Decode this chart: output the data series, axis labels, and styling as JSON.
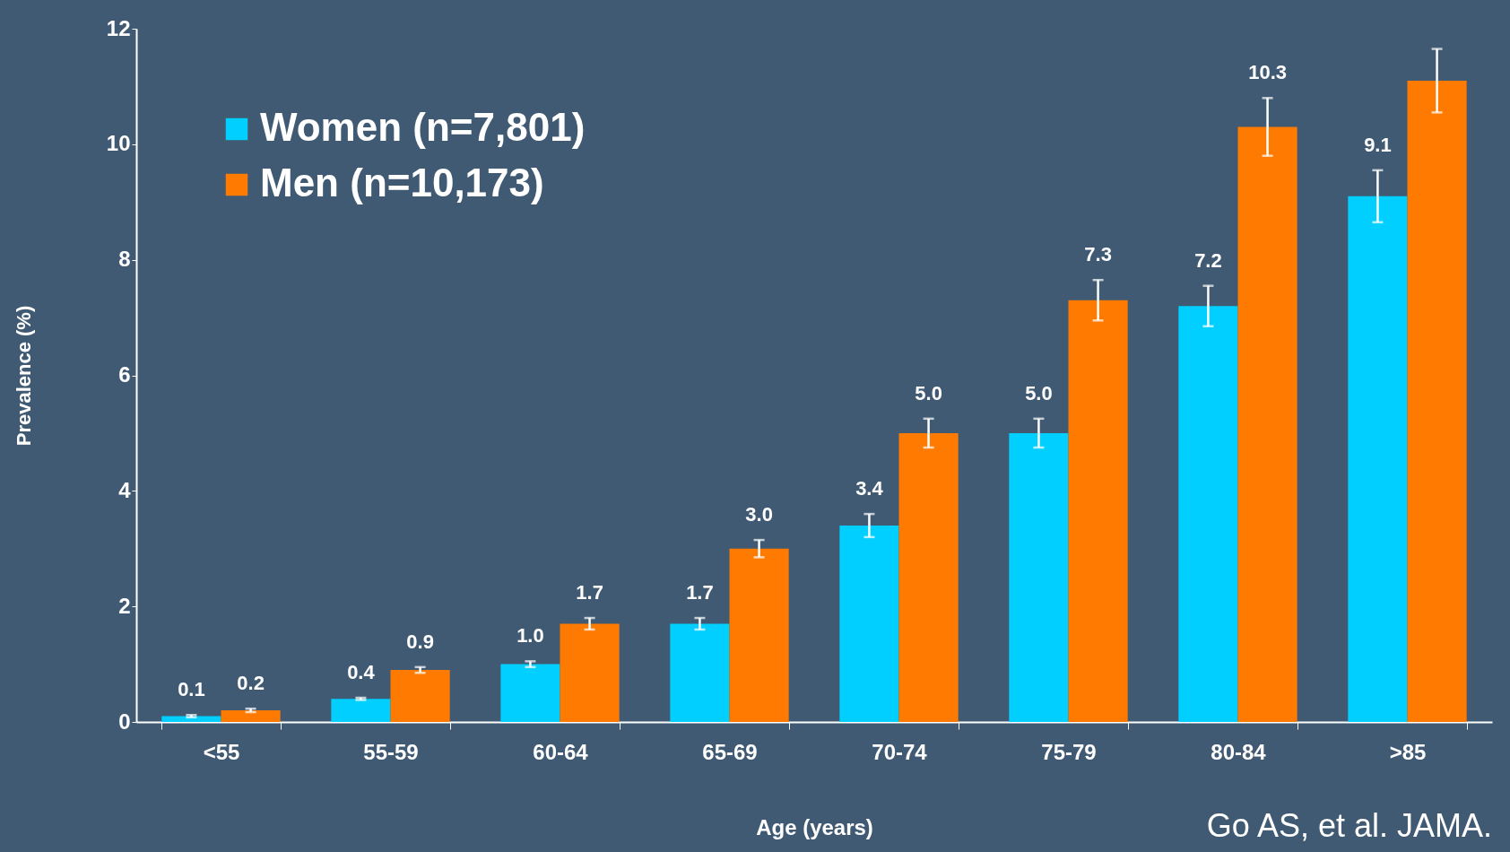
{
  "chart_data": {
    "type": "bar",
    "xlabel": "Age (years)",
    "ylabel": "Prevalence (%)",
    "categories": [
      "<55",
      "55-59",
      "60-64",
      "65-69",
      "70-74",
      "75-79",
      "80-84",
      ">85"
    ],
    "series": [
      {
        "name": "Women (n=7,801)",
        "color": "#00cfff",
        "values": [
          0.1,
          0.4,
          1.0,
          1.7,
          3.4,
          5.0,
          7.2,
          9.1
        ],
        "errors": [
          0.02,
          0.02,
          0.05,
          0.1,
          0.2,
          0.25,
          0.35,
          0.45
        ],
        "value_labels": [
          "0.1",
          "0.4",
          "1.0",
          "1.7",
          "3.4",
          "5.0",
          "7.2",
          "9.1"
        ]
      },
      {
        "name": "Men (n=10,173)",
        "color": "#ff7a00",
        "values": [
          0.2,
          0.9,
          1.7,
          3.0,
          5.0,
          7.3,
          10.3,
          11.1
        ],
        "errors": [
          0.03,
          0.05,
          0.1,
          0.15,
          0.25,
          0.35,
          0.5,
          0.55
        ],
        "value_labels": [
          "0.2",
          "0.9",
          "1.7",
          "3.0",
          "5.0",
          "7.3",
          "10.3",
          null
        ]
      }
    ],
    "ylim": [
      0,
      12
    ],
    "yticks": [
      0,
      2,
      4,
      6,
      8,
      10,
      12
    ],
    "grid": false,
    "legend": "top left",
    "annotations": [
      "Go AS, et al. JAMA."
    ]
  }
}
